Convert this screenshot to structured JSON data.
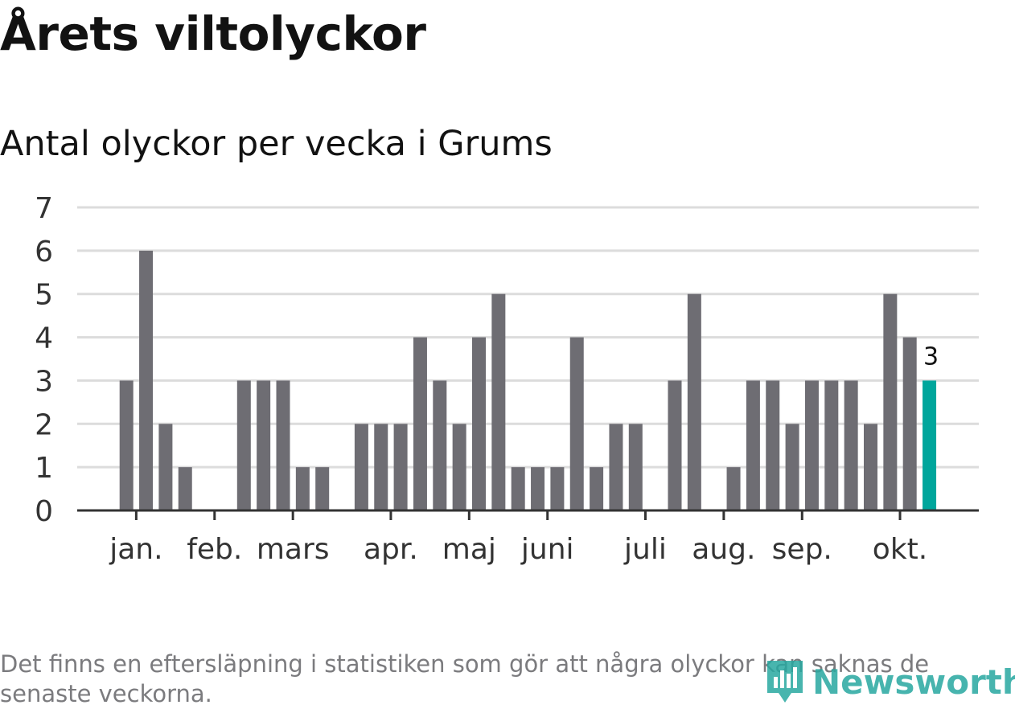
{
  "title": "Årets viltolyckor",
  "subtitle": "Antal olyckor per vecka i Grums",
  "footnote": "Det finns en eftersläpning i statistiken som gör att några olyckor kan saknas de senaste veckorna.",
  "logo_text": "Newsworthy",
  "colors": {
    "bar": "#6e6d73",
    "highlight": "#00a69c",
    "grid": "#dcdcdc",
    "axis": "#333333"
  },
  "chart_data": {
    "type": "bar",
    "title": "Antal olyckor per vecka i Grums",
    "ylim": [
      0,
      7
    ],
    "yticks": [
      0,
      1,
      2,
      3,
      4,
      5,
      6,
      7
    ],
    "grid": true,
    "x_label_mode": "months",
    "weeks": [
      1,
      2,
      3,
      4,
      5,
      6,
      7,
      8,
      9,
      10,
      11,
      12,
      13,
      14,
      15,
      16,
      17,
      18,
      19,
      20,
      21,
      22,
      23,
      24,
      25,
      26,
      27,
      28,
      29,
      30,
      31,
      32,
      33,
      34,
      35,
      36,
      37,
      38,
      39,
      40,
      41,
      42,
      43,
      44
    ],
    "values": [
      0,
      0,
      3,
      6,
      2,
      1,
      0,
      0,
      3,
      3,
      3,
      1,
      1,
      0,
      2,
      2,
      2,
      4,
      3,
      2,
      4,
      5,
      1,
      1,
      1,
      4,
      1,
      2,
      2,
      0,
      3,
      5,
      0,
      1,
      3,
      3,
      2,
      3,
      3,
      3,
      2,
      5,
      4,
      3
    ],
    "highlight_index": 43,
    "highlight_label": "3",
    "months": [
      {
        "label": "jan.",
        "week": 3.5
      },
      {
        "label": "feb.",
        "week": 7.5
      },
      {
        "label": "mars",
        "week": 11.5
      },
      {
        "label": "apr.",
        "week": 16.5
      },
      {
        "label": "maj",
        "week": 20.5
      },
      {
        "label": "juni",
        "week": 24.5
      },
      {
        "label": "juli",
        "week": 29.5
      },
      {
        "label": "aug.",
        "week": 33.5
      },
      {
        "label": "sep.",
        "week": 37.5
      },
      {
        "label": "okt.",
        "week": 42.5
      }
    ]
  }
}
